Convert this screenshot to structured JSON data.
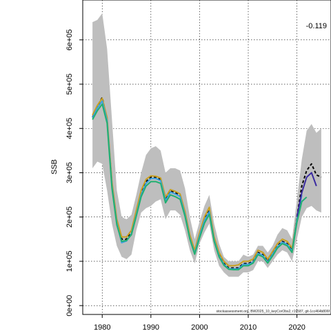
{
  "chart_data": {
    "type": "line",
    "ylabel": "SSB",
    "annotation": "-0.119",
    "footer": "stockassessment.org, BW2025_10_keyCorObs2, r19587, git-1cc464b806f",
    "xlim": [
      1976,
      2027
    ],
    "ylim": [
      -20000,
      690000
    ],
    "x_ticks": [
      1980,
      1990,
      2000,
      2010,
      2020
    ],
    "y_ticks": [
      0,
      100000,
      200000,
      300000,
      400000,
      500000,
      600000
    ],
    "y_tick_labels": [
      "0e+00",
      "1e+05",
      "2e+05",
      "3e+05",
      "4e+05",
      "5e+05",
      "6e+05"
    ],
    "grid": true,
    "band_color": "#bebebe",
    "band_x": [
      1978,
      1979,
      1980,
      1981,
      1982,
      1983,
      1984,
      1985,
      1986,
      1987,
      1988,
      1989,
      1990,
      1991,
      1992,
      1993,
      1994,
      1995,
      1996,
      1997,
      1998,
      1999,
      2000,
      2001,
      2002,
      2003,
      2004,
      2005,
      2006,
      2007,
      2008,
      2009,
      2010,
      2011,
      2012,
      2013,
      2014,
      2015,
      2016,
      2017,
      2018,
      2019,
      2020,
      2021,
      2022,
      2023,
      2024,
      2025
    ],
    "band_upper": [
      640000,
      645000,
      660000,
      580000,
      420000,
      260000,
      200000,
      195000,
      205000,
      250000,
      300000,
      340000,
      355000,
      360000,
      350000,
      300000,
      310000,
      310000,
      305000,
      265000,
      200000,
      150000,
      190000,
      225000,
      250000,
      185000,
      140000,
      110000,
      100000,
      100000,
      100000,
      115000,
      110000,
      115000,
      135000,
      135000,
      120000,
      135000,
      160000,
      175000,
      170000,
      150000,
      240000,
      330000,
      395000,
      410000,
      390000,
      400000
    ],
    "band_lower": [
      310000,
      325000,
      320000,
      260000,
      185000,
      135000,
      110000,
      105000,
      115000,
      170000,
      210000,
      220000,
      225000,
      235000,
      240000,
      195000,
      215000,
      215000,
      205000,
      170000,
      125000,
      95000,
      140000,
      165000,
      185000,
      125000,
      90000,
      75000,
      65000,
      65000,
      65000,
      75000,
      75000,
      80000,
      100000,
      100000,
      85000,
      100000,
      115000,
      125000,
      120000,
      100000,
      150000,
      200000,
      220000,
      225000,
      215000,
      210000
    ],
    "series": [
      {
        "color": "#000000",
        "dashed": true,
        "x": [
          1978,
          1979,
          1980,
          1981,
          1982,
          1983,
          1984,
          1985,
          1986,
          1987,
          1988,
          1989,
          1990,
          1991,
          1992,
          1993,
          1994,
          1995,
          1996,
          1997,
          1998,
          1999,
          2000,
          2001,
          2002,
          2003,
          2004,
          2005,
          2006,
          2007,
          2008,
          2009,
          2010,
          2011,
          2012,
          2013,
          2014,
          2015,
          2016,
          2017,
          2018,
          2019,
          2020,
          2021,
          2022,
          2023,
          2024,
          2025
        ],
        "values": [
          425000,
          450000,
          470000,
          420000,
          275000,
          190000,
          150000,
          150000,
          165000,
          210000,
          255000,
          280000,
          290000,
          290000,
          285000,
          240000,
          260000,
          255000,
          250000,
          210000,
          155000,
          120000,
          160000,
          195000,
          215000,
          150000,
          115000,
          95000,
          85000,
          85000,
          85000,
          95000,
          95000,
          100000,
          120000,
          115000,
          100000,
          118000,
          135000,
          145000,
          140000,
          125000,
          200000,
          270000,
          305000,
          320000,
          295000,
          290000
        ]
      },
      {
        "color": "#c8a020",
        "dashed": false,
        "x": [
          1978,
          1979,
          1980,
          1981,
          1982,
          1983,
          1984,
          1985,
          1986,
          1987,
          1988,
          1989,
          1990,
          1991,
          1992,
          1993,
          1994,
          1995,
          1996,
          1997,
          1998,
          1999,
          2000,
          2001,
          2002,
          2003,
          2004,
          2005,
          2006,
          2007,
          2008,
          2009,
          2010,
          2011,
          2012,
          2013,
          2014,
          2015,
          2016,
          2017,
          2018,
          2019,
          2020
        ],
        "values": [
          430000,
          452000,
          468000,
          425000,
          280000,
          195000,
          155000,
          155000,
          170000,
          215000,
          260000,
          285000,
          293000,
          292000,
          288000,
          245000,
          262000,
          258000,
          252000,
          213000,
          160000,
          125000,
          165000,
          200000,
          222000,
          155000,
          120000,
          100000,
          90000,
          90000,
          92000,
          100000,
          100000,
          105000,
          125000,
          120000,
          105000,
          122000,
          140000,
          150000,
          145000,
          130000,
          198000
        ]
      },
      {
        "color": "#3aa0e0",
        "dashed": false,
        "x": [
          1978,
          1979,
          1980,
          1981,
          1982,
          1983,
          1984,
          1985,
          1986,
          1987,
          1988,
          1989,
          1990,
          1991,
          1992,
          1993,
          1994,
          1995,
          1996,
          1997,
          1998,
          1999,
          2000,
          2001,
          2002,
          2003,
          2004,
          2005,
          2006,
          2007,
          2008,
          2009,
          2010,
          2011,
          2012,
          2013,
          2014,
          2015,
          2016,
          2017,
          2018,
          2019,
          2020,
          2021
        ],
        "values": [
          424000,
          446000,
          462000,
          418000,
          270000,
          186000,
          142000,
          146000,
          162000,
          205000,
          250000,
          276000,
          287000,
          287000,
          282000,
          237000,
          256000,
          252000,
          246000,
          206000,
          152000,
          118000,
          158000,
          192000,
          212000,
          148000,
          113000,
          93000,
          83000,
          83000,
          83000,
          93000,
          93000,
          98000,
          118000,
          113000,
          98000,
          116000,
          133000,
          143000,
          138000,
          123000,
          195000,
          250000
        ]
      },
      {
        "color": "#3a2aa0",
        "dashed": false,
        "x": [
          2020,
          2021,
          2022,
          2023,
          2024
        ],
        "values": [
          200000,
          255000,
          290000,
          300000,
          270000
        ]
      },
      {
        "color": "#20b070",
        "dashed": false,
        "x": [
          1978,
          1979,
          1980,
          1981,
          1982,
          1983,
          1984,
          1985,
          1986,
          1987,
          1988,
          1989,
          1990,
          1991,
          1992,
          1993,
          1994,
          1995,
          1996,
          1997,
          1998,
          1999,
          2000,
          2001,
          2002,
          2003,
          2004,
          2005,
          2006,
          2007,
          2008,
          2009,
          2010,
          2011,
          2012,
          2013,
          2014,
          2015,
          2016,
          2017,
          2018,
          2019,
          2020,
          2021,
          2022
        ],
        "values": [
          420000,
          440000,
          455000,
          412000,
          265000,
          182000,
          145000,
          147000,
          160000,
          202000,
          246000,
          270000,
          280000,
          280000,
          276000,
          232000,
          250000,
          246000,
          240000,
          202000,
          150000,
          116000,
          153000,
          186000,
          206000,
          145000,
          110000,
          91000,
          82000,
          81000,
          81000,
          90000,
          90000,
          96000,
          115000,
          110000,
          96000,
          112000,
          130000,
          140000,
          135000,
          120000,
          188000,
          235000,
          245000
        ]
      }
    ]
  }
}
